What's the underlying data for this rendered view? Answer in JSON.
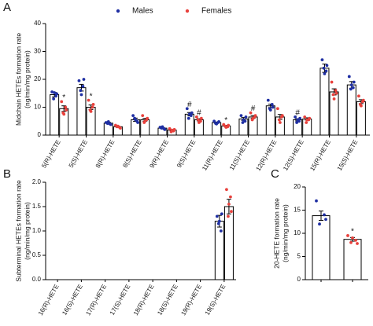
{
  "chart_data": [
    {
      "type": "bar",
      "label": "A",
      "ylabel": [
        "Midchain HETEs formation rate",
        "(ng/min/mg protein)"
      ],
      "categories": [
        "5(R)-HETE",
        "5(S)-HETE",
        "8(R)-HETE",
        "8(S)-HETE",
        "9(R)-HETE",
        "9(S)-HETE",
        "11(R)-HETE",
        "11(S)-HETE",
        "12(R)-HETE",
        "12(S)-HETE",
        "15(R)-HETE",
        "15(S)-HETE"
      ],
      "ylim": [
        0,
        40
      ],
      "yticks": [
        0,
        10,
        20,
        30,
        40
      ],
      "series": [
        {
          "name": "Males",
          "color": "#1f2fa3",
          "values": [
            14.5,
            17,
            4.3,
            5.5,
            2.5,
            7.5,
            4.5,
            5.8,
            10.5,
            5.5,
            24,
            18
          ],
          "errors": [
            0.8,
            1.2,
            0.3,
            0.6,
            0.2,
            0.6,
            0.2,
            0.5,
            0.6,
            0.4,
            1.5,
            1.2
          ],
          "annotations": [
            null,
            null,
            null,
            null,
            null,
            "#",
            null,
            null,
            null,
            "#",
            null,
            null
          ],
          "points": [
            [
              15.5,
              14,
              13,
              14.8,
              15.2
            ],
            [
              19.5,
              17.5,
              16,
              20,
              14.5
            ],
            [
              4.5,
              4,
              4.2,
              3.8,
              4.8
            ],
            [
              7,
              5,
              6,
              4.5,
              5.5
            ],
            [
              2.8,
              2.3,
              2.5,
              2,
              3
            ],
            [
              9.5,
              7,
              6,
              8,
              7.5
            ],
            [
              5,
              4.5,
              4.2,
              4.8,
              4
            ],
            [
              7,
              5,
              4.5,
              6.5,
              5.5
            ],
            [
              12.5,
              11,
              9.5,
              10,
              9
            ],
            [
              6.5,
              5,
              4.5,
              6,
              5.5
            ],
            [
              27,
              23,
              24,
              25,
              22
            ],
            [
              21,
              17,
              16.5,
              19,
              18
            ]
          ]
        },
        {
          "name": "Females",
          "color": "#e8413c",
          "values": [
            9.5,
            10,
            3,
            5.5,
            1.8,
            5.5,
            3.3,
            6.5,
            6.5,
            5.8,
            15.5,
            12
          ],
          "errors": [
            1,
            0.8,
            0.2,
            0.5,
            0.2,
            0.4,
            0.2,
            0.5,
            0.9,
            0.4,
            1.1,
            0.7
          ],
          "annotations": [
            "*",
            "*",
            null,
            null,
            null,
            "#",
            "*",
            "#",
            null,
            null,
            null,
            null
          ],
          "points": [
            [
              12,
              10,
              8,
              9,
              7.5
            ],
            [
              12.5,
              10,
              9,
              11,
              8.5
            ],
            [
              3.5,
              2.8,
              3,
              2.5,
              3.2
            ],
            [
              7,
              5.5,
              4.5,
              6,
              5
            ],
            [
              2.3,
              1.5,
              1.2,
              2,
              1.8
            ],
            [
              6.5,
              5,
              5.5,
              6,
              4.5
            ],
            [
              3.8,
              3,
              3.2,
              3.5,
              2.8
            ],
            [
              8,
              6.5,
              5.5,
              7,
              6
            ],
            [
              9.5,
              6.5,
              5.5,
              7,
              4.5
            ],
            [
              6.5,
              5.5,
              4.5,
              6,
              5.5
            ],
            [
              19,
              16,
              14.5,
              15,
              13
            ],
            [
              14,
              12,
              11,
              12.5,
              10.5
            ]
          ]
        }
      ]
    },
    {
      "type": "bar",
      "label": "B",
      "ylabel": [
        "Subterminal HETEs formation rate",
        "(ng/min/mg protein)"
      ],
      "categories": [
        "16(R)-HETE",
        "16(S)-HETE",
        "17(R)-HETE",
        "17(S)-HETE",
        "18(R)-HETE",
        "18(S)-HETE",
        "19(R)-HETE",
        "19(S)-HETE"
      ],
      "ylim": [
        0,
        2
      ],
      "yticks": [
        {
          "value": 0,
          "label": "0.0"
        },
        {
          "value": 0.5,
          "label": "0.5"
        },
        {
          "value": 1,
          "label": "1.0"
        },
        {
          "value": 1.5,
          "label": "1.5"
        },
        {
          "value": 2,
          "label": "2.0"
        }
      ],
      "series": [
        {
          "name": "Males",
          "color": "#1f2fa3",
          "values": [
            null,
            null,
            null,
            null,
            null,
            null,
            null,
            1.2
          ],
          "errors": [
            null,
            null,
            null,
            null,
            null,
            null,
            null,
            0.12
          ],
          "points": [
            null,
            null,
            null,
            null,
            null,
            null,
            null,
            [
              1.3,
              1.0,
              1.15,
              1.35,
              1.2
            ]
          ]
        },
        {
          "name": "Females",
          "color": "#e8413c",
          "values": [
            null,
            null,
            null,
            null,
            null,
            null,
            null,
            1.5
          ],
          "errors": [
            null,
            null,
            null,
            null,
            null,
            null,
            null,
            0.15
          ],
          "points": [
            null,
            null,
            null,
            null,
            null,
            null,
            null,
            [
              1.85,
              1.7,
              1.3,
              1.4,
              1.55
            ]
          ]
        }
      ]
    },
    {
      "type": "bar",
      "label": "C",
      "ylabel": [
        "20-HETE formation rate",
        "(ng/min/mg protein)"
      ],
      "categories": [
        null,
        null
      ],
      "ylim": [
        0,
        20
      ],
      "yticks": [
        0,
        5,
        10,
        15,
        20
      ],
      "series": [
        {
          "name": "Males",
          "color": "#1f2fa3",
          "values": [
            13.8,
            null
          ],
          "errors": [
            1.0,
            null
          ],
          "points": [
            [
              17,
              14,
              12,
              13
            ],
            null
          ]
        },
        {
          "name": "Females",
          "color": "#e8413c",
          "values": [
            null,
            8.7
          ],
          "errors": [
            null,
            0.4
          ],
          "annotations": [
            null,
            "*"
          ],
          "points": [
            null,
            [
              9.5,
              8.5,
              8,
              7.8,
              9
            ]
          ]
        }
      ]
    }
  ]
}
